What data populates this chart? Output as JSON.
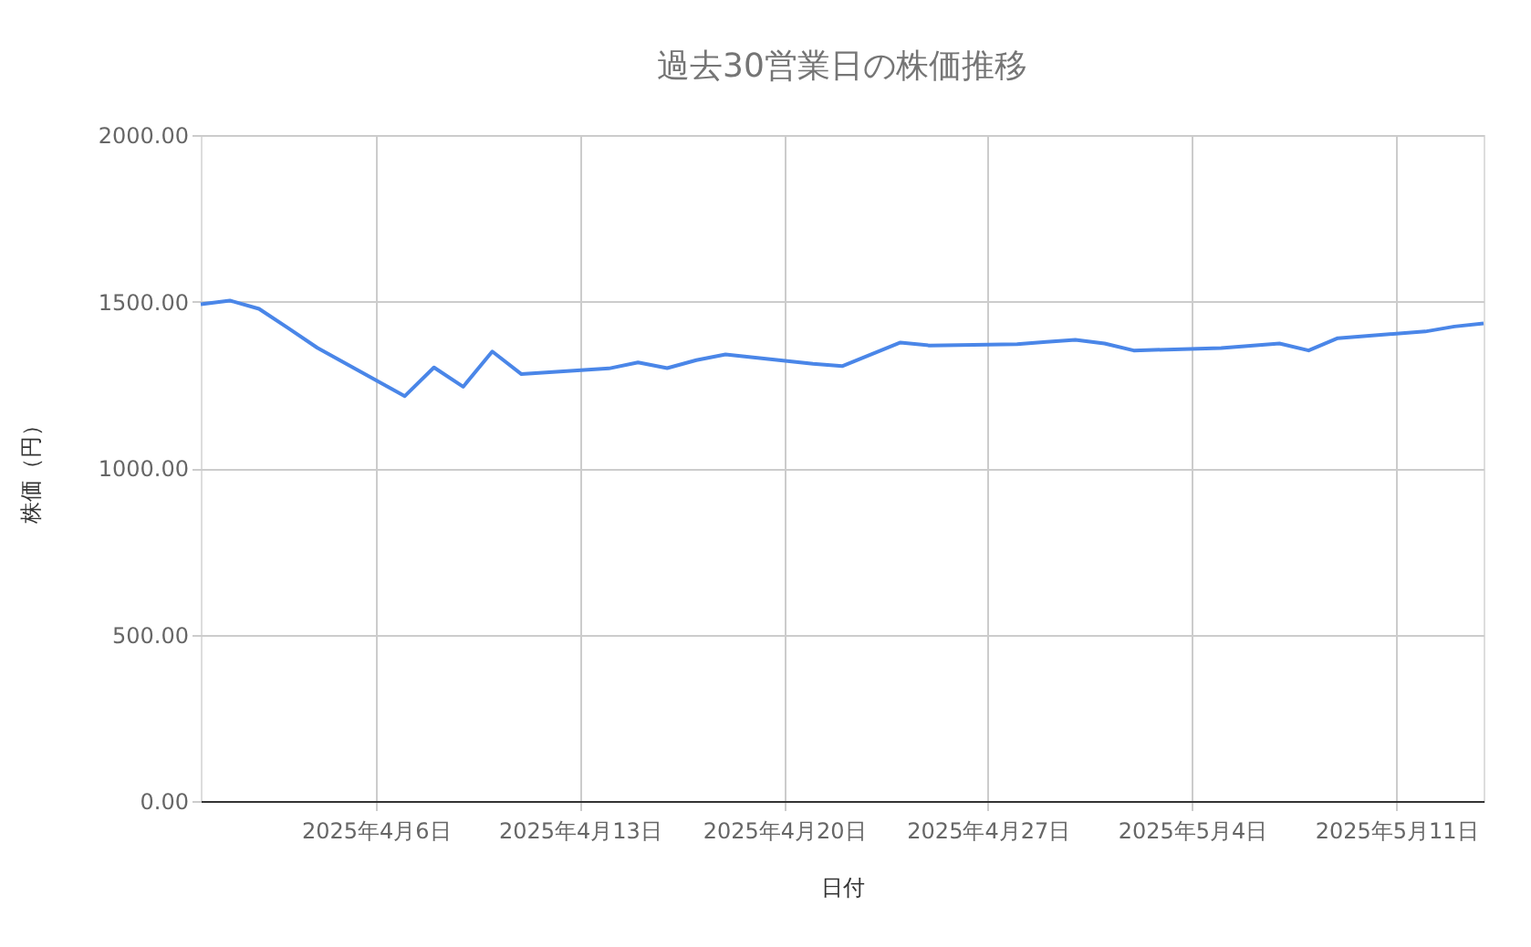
{
  "chart_data": {
    "type": "line",
    "title": "過去30営業日の株価推移",
    "xlabel": "日付",
    "ylabel": "株価（円）",
    "x": [
      "2025-03-31",
      "2025-04-01",
      "2025-04-02",
      "2025-04-03",
      "2025-04-04",
      "2025-04-07",
      "2025-04-08",
      "2025-04-09",
      "2025-04-10",
      "2025-04-11",
      "2025-04-14",
      "2025-04-15",
      "2025-04-16",
      "2025-04-17",
      "2025-04-18",
      "2025-04-21",
      "2025-04-22",
      "2025-04-24",
      "2025-04-25",
      "2025-04-28",
      "2025-04-29",
      "2025-04-30",
      "2025-05-01",
      "2025-05-02",
      "2025-05-05",
      "2025-05-06",
      "2025-05-07",
      "2025-05-08",
      "2025-05-09",
      "2025-05-12",
      "2025-05-13",
      "2025-05-14"
    ],
    "series": [
      {
        "color": "#4a86e8",
        "values": [
          1492,
          1503,
          1478,
          1420,
          1361,
          1216,
          1302,
          1244,
          1350,
          1282,
          1299,
          1317,
          1300,
          1324,
          1341,
          1313,
          1306,
          1377,
          1368,
          1372,
          1379,
          1385,
          1374,
          1353,
          1360,
          1367,
          1374,
          1353,
          1390,
          1410,
          1425,
          1434
        ]
      }
    ],
    "xlim": [
      "2025-03-31",
      "2025-05-14"
    ],
    "xticks": [
      {
        "value": "2025-04-06",
        "label": "2025年4月6日"
      },
      {
        "value": "2025-04-13",
        "label": "2025年4月13日"
      },
      {
        "value": "2025-04-20",
        "label": "2025年4月20日"
      },
      {
        "value": "2025-04-27",
        "label": "2025年4月27日"
      },
      {
        "value": "2025-05-04",
        "label": "2025年5月4日"
      },
      {
        "value": "2025-05-11",
        "label": "2025年5月11日"
      }
    ],
    "ylim": [
      0,
      2000
    ],
    "yticks": [
      {
        "value": 0,
        "label": "0.00"
      },
      {
        "value": 500,
        "label": "500.00"
      },
      {
        "value": 1000,
        "label": "1000.00"
      },
      {
        "value": 1500,
        "label": "1500.00"
      },
      {
        "value": 2000,
        "label": "2000.00"
      }
    ],
    "grid": true,
    "marker": "none",
    "line_style": "solid"
  }
}
